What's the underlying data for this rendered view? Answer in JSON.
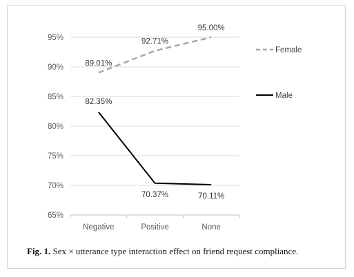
{
  "chart_data": {
    "type": "line",
    "categories": [
      "Negative",
      "Positive",
      "None"
    ],
    "series": [
      {
        "name": "Female",
        "values": [
          89.01,
          92.71,
          95.0
        ],
        "labels": [
          "89.01%",
          "92.71%",
          "95.00%"
        ],
        "color": "#a6a6a6",
        "style": "dashed"
      },
      {
        "name": "Male",
        "values": [
          82.35,
          70.37,
          70.11
        ],
        "labels": [
          "82.35%",
          "70.37%",
          "70.11%"
        ],
        "color": "#000000",
        "style": "solid"
      }
    ],
    "ylim": [
      65,
      95
    ],
    "yticks": [
      65,
      70,
      75,
      80,
      85,
      90,
      95
    ],
    "ytick_labels": [
      "65%",
      "70%",
      "75%",
      "80%",
      "85%",
      "90%",
      "95%"
    ],
    "grid": true,
    "legend": "right",
    "xlabel": "",
    "ylabel": ""
  },
  "caption": {
    "label": "Fig. 1.",
    "text": "Sex × utterance type interaction effect on friend request compliance."
  }
}
